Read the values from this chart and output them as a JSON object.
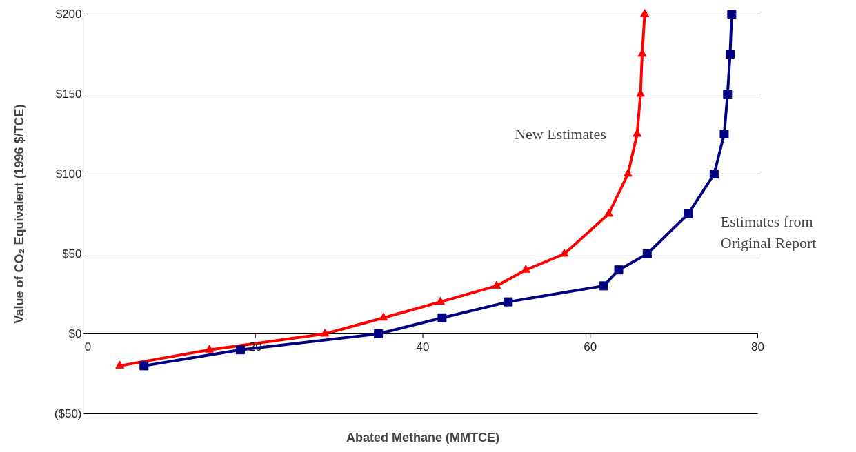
{
  "chart_data": {
    "type": "line",
    "xlabel": "Abated Methane (MMTCE)",
    "ylabel": "Value of CO₂ Equivalent (1996 $/TCE)",
    "xlim": [
      0,
      80
    ],
    "xticks": [
      0,
      20,
      40,
      60,
      80
    ],
    "ylim": [
      -50,
      200
    ],
    "yticks": [
      {
        "value": -50,
        "label": "($50)"
      },
      {
        "value": 0,
        "label": "$0"
      },
      {
        "value": 50,
        "label": "$50"
      },
      {
        "value": 100,
        "label": "$100"
      },
      {
        "value": 150,
        "label": "$150"
      },
      {
        "value": 200,
        "label": "$200"
      }
    ],
    "grid": "y",
    "legend": false,
    "series": [
      {
        "name": "New Estimates",
        "color": "#ff0000",
        "marker": "triangle",
        "x": [
          3.8,
          14.5,
          28.3,
          35.3,
          42.1,
          48.8,
          52.3,
          56.9,
          62.2,
          64.5,
          65.6,
          66.0,
          66.2,
          66.5
        ],
        "values": [
          -20,
          -10,
          0,
          10,
          20,
          30,
          40,
          50,
          75,
          100,
          125,
          150,
          175,
          200
        ]
      },
      {
        "name": "Estimates from\nOriginal Report",
        "color": "#000080",
        "marker": "square",
        "x": [
          6.7,
          18.2,
          34.7,
          42.3,
          50.2,
          61.6,
          63.4,
          66.8,
          71.7,
          74.8,
          76.0,
          76.4,
          76.7,
          76.9
        ],
        "values": [
          -20,
          -10,
          0,
          10,
          20,
          30,
          40,
          50,
          75,
          100,
          125,
          150,
          175,
          200
        ]
      }
    ]
  }
}
